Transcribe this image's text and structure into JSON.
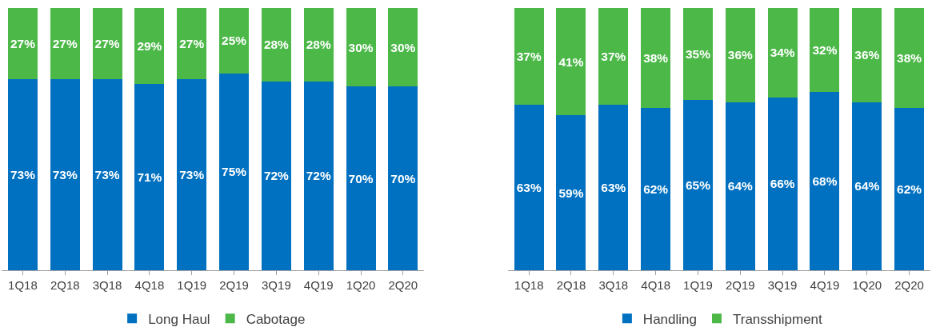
{
  "chart_data": [
    {
      "type": "bar",
      "stacked": true,
      "categories": [
        "1Q18",
        "2Q18",
        "3Q18",
        "4Q18",
        "1Q19",
        "2Q19",
        "3Q19",
        "4Q19",
        "1Q20",
        "2Q20"
      ],
      "series": [
        {
          "name": "Long Haul",
          "color": "#0070c0",
          "values": [
            73,
            73,
            73,
            71,
            73,
            75,
            72,
            72,
            70,
            70
          ],
          "value_labels": [
            "73%",
            "73%",
            "73%",
            "71%",
            "73%",
            "75%",
            "72%",
            "72%",
            "70%",
            "70%"
          ]
        },
        {
          "name": "Cabotage",
          "color": "#4cb848",
          "values": [
            27,
            27,
            27,
            29,
            27,
            25,
            28,
            28,
            30,
            30
          ],
          "value_labels": [
            "27%",
            "27%",
            "27%",
            "29%",
            "27%",
            "25%",
            "28%",
            "28%",
            "30%",
            "30%"
          ]
        }
      ],
      "legend": "bottom",
      "tick_labels": "x"
    },
    {
      "type": "bar",
      "stacked": true,
      "categories": [
        "1Q18",
        "2Q18",
        "3Q18",
        "4Q18",
        "1Q19",
        "2Q19",
        "3Q19",
        "4Q19",
        "1Q20",
        "2Q20"
      ],
      "series": [
        {
          "name": "Handling",
          "color": "#0070c0",
          "values": [
            63,
            59,
            63,
            62,
            65,
            64,
            66,
            68,
            64,
            62
          ],
          "value_labels": [
            "63%",
            "59%",
            "63%",
            "62%",
            "65%",
            "64%",
            "66%",
            "68%",
            "64%",
            "62%"
          ]
        },
        {
          "name": "Transshipment",
          "color": "#4cb848",
          "values": [
            37,
            41,
            37,
            38,
            35,
            36,
            34,
            32,
            36,
            38
          ],
          "value_labels": [
            "37%",
            "41%",
            "37%",
            "38%",
            "35%",
            "36%",
            "34%",
            "32%",
            "36%",
            "38%"
          ]
        }
      ],
      "legend": "bottom",
      "tick_labels": "x"
    }
  ]
}
